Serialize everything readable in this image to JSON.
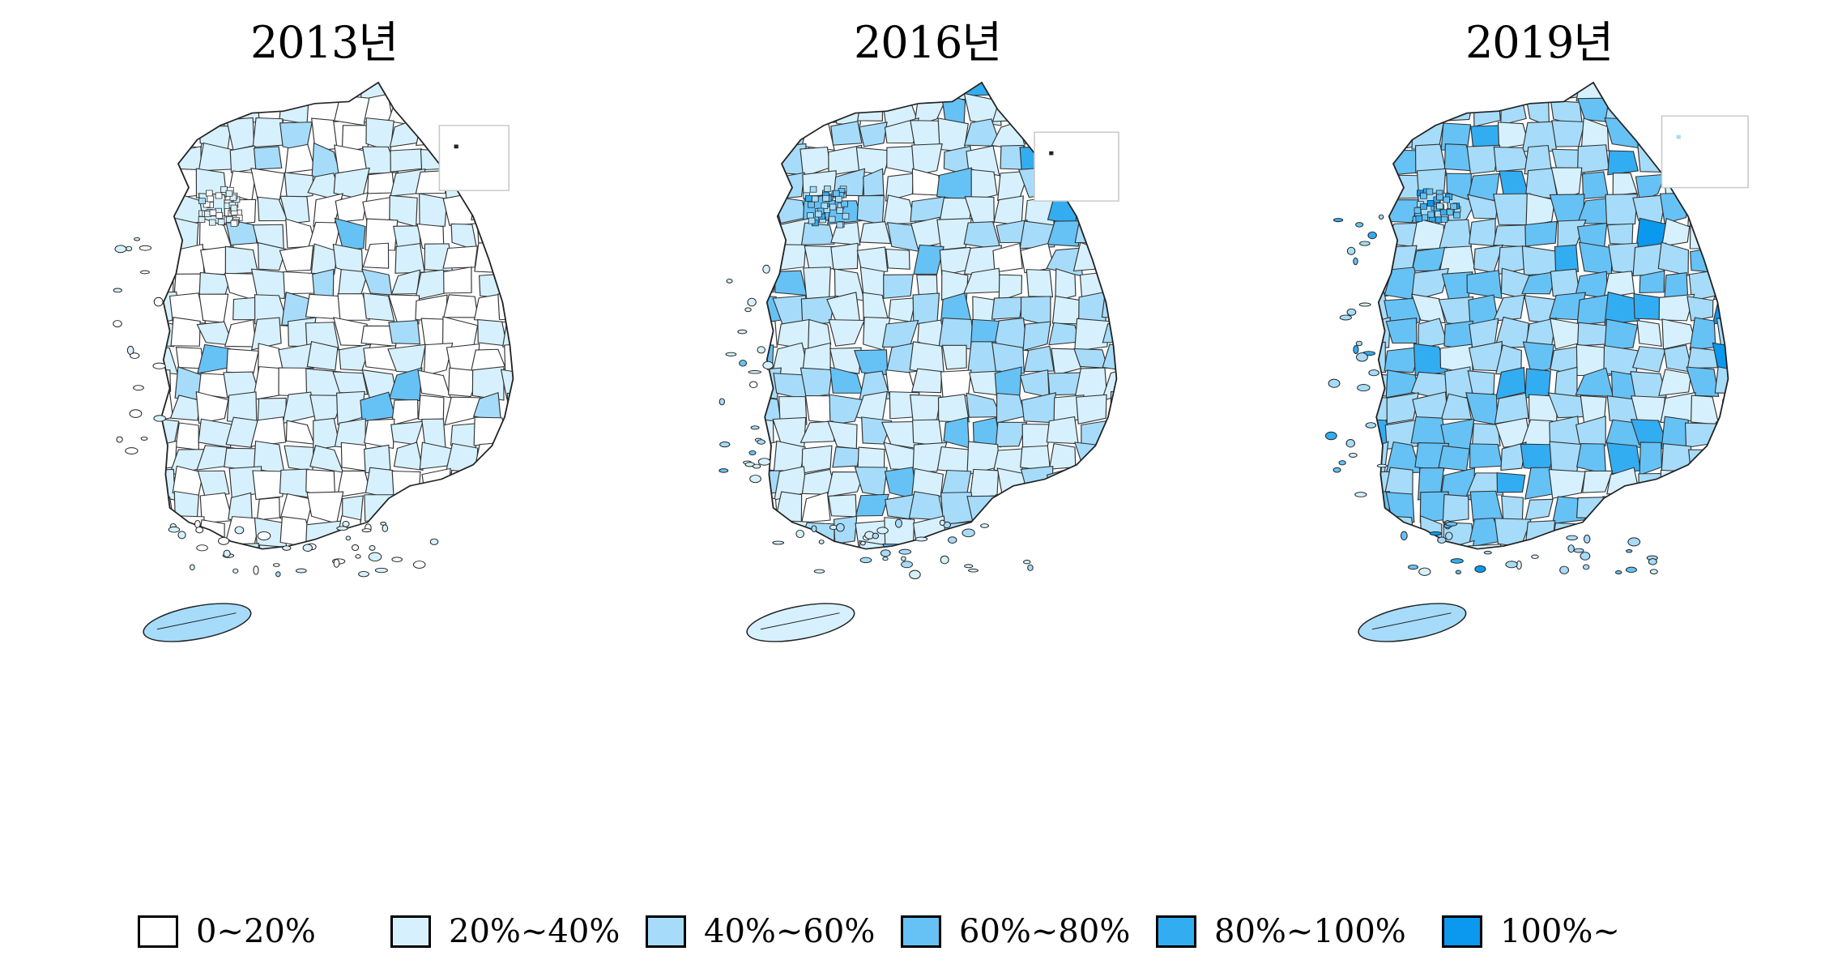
{
  "panels": [
    {
      "title": "2013년",
      "inset_label": ""
    },
    {
      "title": "2016년",
      "inset_label": ""
    },
    {
      "title": "2019년",
      "inset_label": ""
    }
  ],
  "legend": [
    {
      "label": "0~20%",
      "color": "#ffffff"
    },
    {
      "label": "20%~40%",
      "color": "#d6f1fd"
    },
    {
      "label": "40%~60%",
      "color": "#a6dcfa"
    },
    {
      "label": "60%~80%",
      "color": "#66c2f5"
    },
    {
      "label": "80%~100%",
      "color": "#33adf2"
    },
    {
      "label": "100%~",
      "color": "#0a99ef"
    }
  ],
  "map_data": {
    "regions": "South Korea municipalities (si/gun/gu) choropleth",
    "shading": {
      "2013": "predominantly 0~20% and 20%~40%, few 40%~60% districts",
      "2016": "predominantly 20%~40% and 40%~60%, scattered 60%~80% in south-east and west",
      "2019": "predominantly 40%~60% and 60%~80%, several 80%~100% districts, some 100%~ on coasts"
    }
  }
}
